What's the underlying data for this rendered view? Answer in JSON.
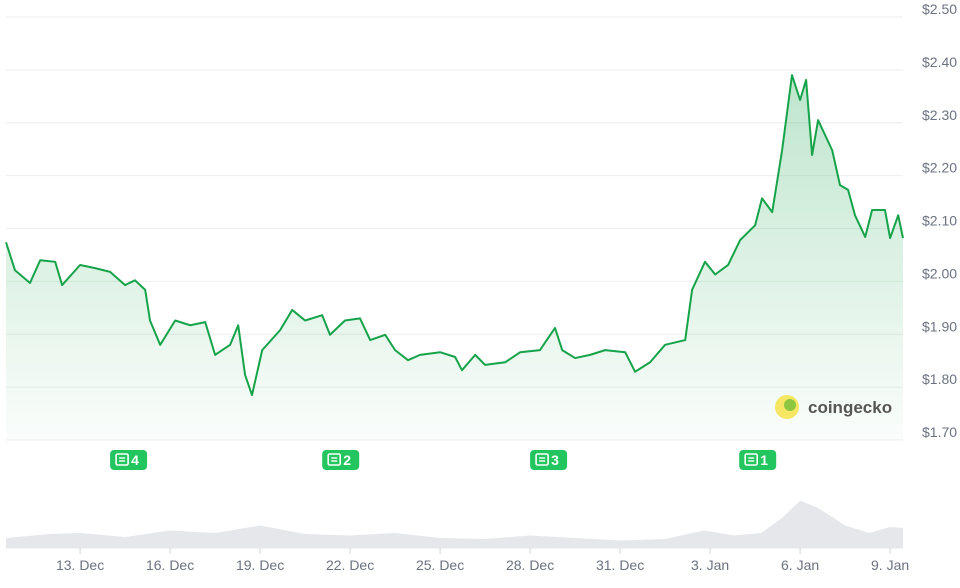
{
  "chart_data": {
    "type": "line",
    "x": [
      -0.47,
      -0.17,
      0.33,
      0.67,
      1.17,
      1.4,
      2,
      2.5,
      3,
      3.5,
      3.83,
      4.17,
      4.33,
      4.67,
      5.17,
      5.67,
      6.17,
      6.5,
      7,
      7.27,
      7.5,
      7.73,
      8.07,
      8.67,
      9.07,
      9.5,
      10.07,
      10.33,
      10.83,
      11.33,
      11.67,
      12.17,
      12.5,
      12.93,
      13.33,
      14,
      14.5,
      14.73,
      15.17,
      15.5,
      16.17,
      16.67,
      17.33,
      17.83,
      18.07,
      18.5,
      19,
      19.5,
      20.17,
      20.5,
      21,
      21.5,
      22.17,
      22.4,
      22.83,
      23.17,
      23.6,
      24,
      24.5,
      24.73,
      25.07,
      25.4,
      25.73,
      26,
      26.2,
      26.4,
      26.6,
      27.07,
      27.33,
      27.6,
      27.83,
      28.17,
      28.4,
      28.83,
      29,
      29.27,
      29.43
    ],
    "series": [
      {
        "color": "#16a34a",
        "values": [
          2.074,
          2.021,
          1.997,
          2.04,
          2.037,
          1.993,
          2.031,
          2.025,
          2.018,
          1.993,
          2.002,
          1.984,
          1.926,
          1.88,
          1.926,
          1.917,
          1.923,
          1.861,
          1.88,
          1.917,
          1.823,
          1.785,
          1.87,
          1.908,
          1.946,
          1.926,
          1.936,
          1.899,
          1.926,
          1.93,
          1.889,
          1.899,
          1.87,
          1.851,
          1.861,
          1.866,
          1.857,
          1.832,
          1.861,
          1.842,
          1.847,
          1.866,
          1.87,
          1.912,
          1.87,
          1.855,
          1.861,
          1.87,
          1.866,
          1.829,
          1.847,
          1.88,
          1.889,
          1.984,
          2.037,
          2.013,
          2.031,
          2.078,
          2.106,
          2.157,
          2.131,
          2.248,
          2.39,
          2.343,
          2.381,
          2.239,
          2.305,
          2.248,
          2.182,
          2.173,
          2.125,
          2.084,
          2.135,
          2.135,
          2.082,
          2.125,
          2.082
        ]
      }
    ],
    "xlim": [
      -0.47,
      29.43
    ],
    "xticks": [
      {
        "value": 2,
        "label": "13. Dec"
      },
      {
        "value": 5,
        "label": "16. Dec"
      },
      {
        "value": 8,
        "label": "19. Dec"
      },
      {
        "value": 11,
        "label": "22. Dec"
      },
      {
        "value": 14,
        "label": "25. Dec"
      },
      {
        "value": 17,
        "label": "28. Dec"
      },
      {
        "value": 20,
        "label": "31. Dec"
      },
      {
        "value": 23,
        "label": "3. Jan"
      },
      {
        "value": 26,
        "label": "6. Jan"
      },
      {
        "value": 29,
        "label": "9. Jan"
      }
    ],
    "ylim": [
      1.7,
      2.5
    ],
    "yticks": [
      {
        "value": 1.7,
        "label": "$1.70"
      },
      {
        "value": 1.8,
        "label": "$1.80"
      },
      {
        "value": 1.9,
        "label": "$1.90"
      },
      {
        "value": 2.0,
        "label": "$2.00"
      },
      {
        "value": 2.1,
        "label": "$2.10"
      },
      {
        "value": 2.2,
        "label": "$2.20"
      },
      {
        "value": 2.3,
        "label": "$2.30"
      },
      {
        "value": 2.4,
        "label": "$2.40"
      },
      {
        "value": 2.5,
        "label": "$2.50"
      }
    ],
    "grid": true,
    "volume": {
      "x": [
        -0.47,
        1,
        2,
        3.5,
        5,
        6.5,
        8,
        9.5,
        11,
        12.5,
        14,
        15.5,
        17,
        18.5,
        20,
        21.5,
        22.8,
        23.8,
        24.7,
        25.4,
        26,
        26.6,
        27.5,
        28.3,
        29,
        29.43
      ],
      "values": [
        20,
        28,
        30,
        22,
        35,
        30,
        45,
        28,
        25,
        30,
        20,
        18,
        25,
        20,
        15,
        18,
        35,
        25,
        30,
        60,
        95,
        80,
        45,
        30,
        42,
        40
      ],
      "color": "#e5e7eb",
      "lim": [
        0,
        100
      ]
    },
    "news": [
      {
        "x": 3.6,
        "count": 4
      },
      {
        "x": 10.67,
        "count": 2
      },
      {
        "x": 17.6,
        "count": 3
      },
      {
        "x": 24.57,
        "count": 1
      }
    ],
    "watermark": "coingecko"
  }
}
